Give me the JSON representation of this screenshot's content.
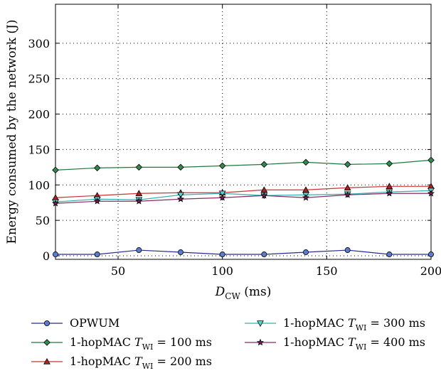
{
  "chart_data": {
    "type": "line",
    "xlabel": "D",
    "xlabel_sub": "CW",
    "xlabel_unit": " (ms)",
    "ylabel": "Energy consumed by the network (J)",
    "xlim": [
      20,
      200
    ],
    "ylim": [
      -5,
      355
    ],
    "xticks": [
      50,
      100,
      150,
      200
    ],
    "yticks": [
      0,
      50,
      100,
      150,
      200,
      250,
      300
    ],
    "grid": true,
    "legend_position": "bottom",
    "x": [
      20,
      40,
      60,
      80,
      100,
      120,
      140,
      160,
      180,
      200
    ],
    "series": [
      {
        "name": "OPWUM",
        "marker": "circle",
        "line_color": "#2a2a8c",
        "marker_color": "#5a7bd0",
        "values": [
          2,
          2,
          8,
          5,
          2,
          2,
          5,
          8,
          2,
          2
        ]
      },
      {
        "name": "1-hopMAC",
        "name_var": "T",
        "name_sub": "WI",
        "name_rest": " = 100 ms",
        "marker": "diamond",
        "line_color": "#1e7a3a",
        "marker_color": "#2e8b4f",
        "values": [
          121,
          124,
          125,
          125,
          127,
          129,
          132,
          129,
          130,
          135
        ]
      },
      {
        "name": "1-hopMAC",
        "name_var": "T",
        "name_sub": "WI",
        "name_rest": " = 200 ms",
        "marker": "triangle-up",
        "line_color": "#c83232",
        "marker_color": "#b02020",
        "values": [
          82,
          85,
          88,
          89,
          89,
          93,
          93,
          96,
          98,
          98
        ]
      },
      {
        "name": "1-hopMAC",
        "name_var": "T",
        "name_sub": "WI",
        "name_rest": " = 300 ms",
        "marker": "triangle-down",
        "line_color": "#35b0b0",
        "marker_color": "#5fd0d0",
        "values": [
          76,
          80,
          79,
          86,
          88,
          85,
          86,
          87,
          90,
          92
        ]
      },
      {
        "name": "1-hopMAC",
        "name_var": "T",
        "name_sub": "WI",
        "name_rest": " = 400 ms",
        "marker": "star",
        "line_color": "#8a2a6a",
        "marker_color": "#7a1a5a",
        "values": [
          74,
          77,
          77,
          80,
          82,
          85,
          82,
          86,
          88,
          88
        ]
      }
    ]
  }
}
